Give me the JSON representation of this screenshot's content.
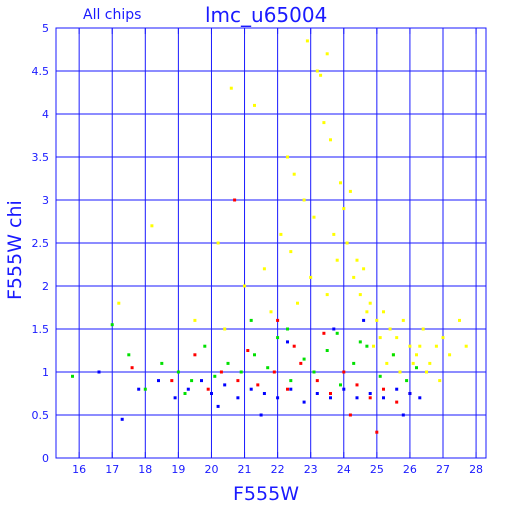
{
  "chart_data": {
    "type": "scatter",
    "title": "lmc_u65004",
    "subtitle": "All chips",
    "xlabel": "F555W",
    "ylabel": "F555W chi",
    "xlim": [
      15.3,
      28.3
    ],
    "ylim": [
      0,
      5
    ],
    "grid": true,
    "x_ticks": [
      16,
      17,
      18,
      19,
      20,
      21,
      22,
      23,
      24,
      25,
      26,
      27,
      28
    ],
    "y_ticks": [
      0,
      0.5,
      1,
      1.5,
      2,
      2.5,
      3,
      3.5,
      4,
      4.5,
      5
    ],
    "x_tick_labels": [
      "16",
      "17",
      "18",
      "19",
      "20",
      "21",
      "22",
      "23",
      "24",
      "25",
      "26",
      "27",
      "28"
    ],
    "y_tick_labels": [
      "0",
      "0.5",
      "1",
      "1.5",
      "2",
      "2.5",
      "3",
      "3.5",
      "4",
      "4.5",
      "5"
    ],
    "colors": {
      "axis": "#1a1aff",
      "grid": "#1a1aff"
    },
    "series": [
      {
        "color": "#ffff00",
        "description": "yellow points",
        "points": [
          [
            20.6,
            4.3
          ],
          [
            21.3,
            4.1
          ],
          [
            22.3,
            3.5
          ],
          [
            22.5,
            3.3
          ],
          [
            22.8,
            3.0
          ],
          [
            22.9,
            4.85
          ],
          [
            23.1,
            2.8
          ],
          [
            23.2,
            4.5
          ],
          [
            23.3,
            4.45
          ],
          [
            23.5,
            4.7
          ],
          [
            23.4,
            3.9
          ],
          [
            23.6,
            3.7
          ],
          [
            23.7,
            2.6
          ],
          [
            23.9,
            3.2
          ],
          [
            24.0,
            2.9
          ],
          [
            24.1,
            2.5
          ],
          [
            24.2,
            3.1
          ],
          [
            24.3,
            2.1
          ],
          [
            24.4,
            2.3
          ],
          [
            24.5,
            1.9
          ],
          [
            24.6,
            2.2
          ],
          [
            24.8,
            1.8
          ],
          [
            25.0,
            1.6
          ],
          [
            25.2,
            1.7
          ],
          [
            25.4,
            1.5
          ],
          [
            25.6,
            1.4
          ],
          [
            25.8,
            1.6
          ],
          [
            26.0,
            1.3
          ],
          [
            26.2,
            1.2
          ],
          [
            26.4,
            1.5
          ],
          [
            26.6,
            1.1
          ],
          [
            26.8,
            1.3
          ],
          [
            27.0,
            1.4
          ],
          [
            27.2,
            1.2
          ],
          [
            27.5,
            1.6
          ],
          [
            27.7,
            1.3
          ],
          [
            18.2,
            2.7
          ],
          [
            17.2,
            1.8
          ],
          [
            20.2,
            2.5
          ],
          [
            21.0,
            2.0
          ],
          [
            21.6,
            2.2
          ],
          [
            22.1,
            2.6
          ],
          [
            22.4,
            2.4
          ],
          [
            23.0,
            2.1
          ],
          [
            23.8,
            2.3
          ],
          [
            24.7,
            1.7
          ],
          [
            25.1,
            1.4
          ],
          [
            25.5,
            1.2
          ],
          [
            26.1,
            1.1
          ],
          [
            26.5,
            1.0
          ],
          [
            26.9,
            0.9
          ],
          [
            24.9,
            1.3
          ],
          [
            25.3,
            1.1
          ],
          [
            25.7,
            1.0
          ],
          [
            23.5,
            1.9
          ],
          [
            22.6,
            1.8
          ],
          [
            21.8,
            1.7
          ],
          [
            19.5,
            1.6
          ],
          [
            20.4,
            1.5
          ],
          [
            26.3,
            1.3
          ]
        ]
      },
      {
        "color": "#00e000",
        "description": "green points",
        "points": [
          [
            15.8,
            0.95
          ],
          [
            17.0,
            1.55
          ],
          [
            17.5,
            1.2
          ],
          [
            18.5,
            1.1
          ],
          [
            19.0,
            1.0
          ],
          [
            19.4,
            0.9
          ],
          [
            19.8,
            1.3
          ],
          [
            20.1,
            0.95
          ],
          [
            20.5,
            1.1
          ],
          [
            20.9,
            1.0
          ],
          [
            21.3,
            1.2
          ],
          [
            21.7,
            1.05
          ],
          [
            22.0,
            1.4
          ],
          [
            22.4,
            0.9
          ],
          [
            22.8,
            1.15
          ],
          [
            23.1,
            1.0
          ],
          [
            23.5,
            1.25
          ],
          [
            23.9,
            0.85
          ],
          [
            24.3,
            1.1
          ],
          [
            24.7,
            1.3
          ],
          [
            25.1,
            0.95
          ],
          [
            25.5,
            1.2
          ],
          [
            25.9,
            0.9
          ],
          [
            26.2,
            1.05
          ],
          [
            21.2,
            1.6
          ],
          [
            22.3,
            1.5
          ],
          [
            23.8,
            1.45
          ],
          [
            24.5,
            1.35
          ],
          [
            18.0,
            0.8
          ],
          [
            19.2,
            0.75
          ]
        ]
      },
      {
        "color": "#ff0000",
        "description": "red points",
        "points": [
          [
            20.7,
            3.0
          ],
          [
            19.5,
            1.2
          ],
          [
            20.3,
            1.0
          ],
          [
            20.8,
            0.9
          ],
          [
            21.4,
            0.85
          ],
          [
            21.9,
            1.0
          ],
          [
            22.3,
            0.8
          ],
          [
            22.7,
            1.1
          ],
          [
            23.2,
            0.9
          ],
          [
            23.6,
            0.75
          ],
          [
            24.0,
            1.0
          ],
          [
            24.4,
            0.85
          ],
          [
            24.8,
            0.7
          ],
          [
            25.2,
            0.8
          ],
          [
            25.6,
            0.65
          ],
          [
            26.0,
            0.75
          ],
          [
            22.5,
            1.3
          ],
          [
            23.4,
            1.45
          ],
          [
            21.1,
            1.25
          ],
          [
            19.9,
            0.8
          ],
          [
            25.0,
            0.3
          ],
          [
            24.2,
            0.5
          ],
          [
            22.0,
            1.6
          ],
          [
            18.8,
            0.9
          ],
          [
            17.6,
            1.05
          ]
        ]
      },
      {
        "color": "#0000ff",
        "description": "blue points",
        "points": [
          [
            16.6,
            1.0
          ],
          [
            17.3,
            0.45
          ],
          [
            17.8,
            0.8
          ],
          [
            18.4,
            0.9
          ],
          [
            18.9,
            0.7
          ],
          [
            19.3,
            0.8
          ],
          [
            19.7,
            0.9
          ],
          [
            20.0,
            0.75
          ],
          [
            20.4,
            0.85
          ],
          [
            20.8,
            0.7
          ],
          [
            21.2,
            0.8
          ],
          [
            21.6,
            0.75
          ],
          [
            22.0,
            0.7
          ],
          [
            22.4,
            0.8
          ],
          [
            22.8,
            0.65
          ],
          [
            23.2,
            0.75
          ],
          [
            23.6,
            0.7
          ],
          [
            24.0,
            0.8
          ],
          [
            24.4,
            0.7
          ],
          [
            24.8,
            0.75
          ],
          [
            25.2,
            0.7
          ],
          [
            25.6,
            0.8
          ],
          [
            26.0,
            0.75
          ],
          [
            26.3,
            0.7
          ],
          [
            22.3,
            1.35
          ],
          [
            23.7,
            1.5
          ],
          [
            24.6,
            1.6
          ],
          [
            25.8,
            0.5
          ],
          [
            21.5,
            0.5
          ],
          [
            20.2,
            0.6
          ]
        ]
      }
    ]
  }
}
